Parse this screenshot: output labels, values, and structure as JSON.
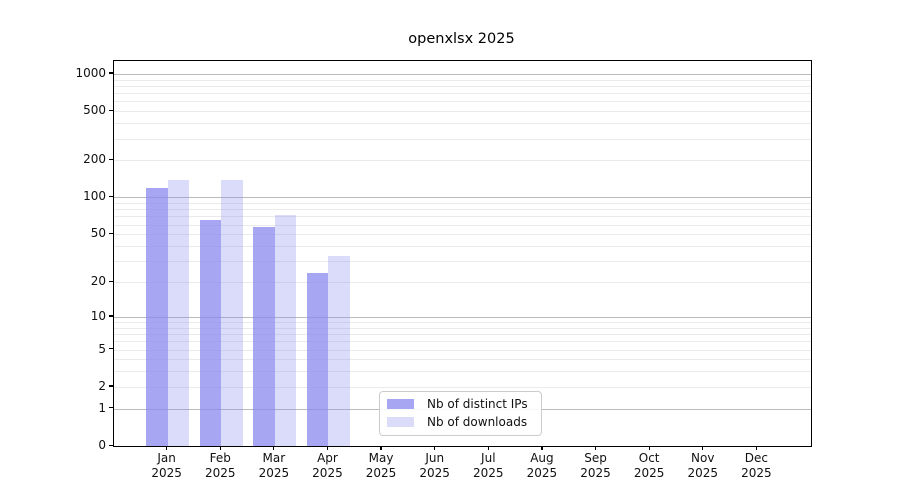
{
  "title": "openxlsx 2025",
  "chart_data": {
    "type": "bar",
    "title": "openxlsx 2025",
    "categories": [
      "Jan 2025",
      "Feb 2025",
      "Mar 2025",
      "Apr 2025",
      "May 2025",
      "Jun 2025",
      "Jul 2025",
      "Aug 2025",
      "Sep 2025",
      "Oct 2025",
      "Nov 2025",
      "Dec 2025"
    ],
    "series": [
      {
        "name": "Nb of distinct IPs",
        "color": "rgba(136,136,238,0.75)",
        "values": [
          120,
          65,
          57,
          24,
          0,
          0,
          0,
          0,
          0,
          0,
          0,
          0
        ]
      },
      {
        "name": "Nb of downloads",
        "color": "rgba(136,136,238,0.30)",
        "values": [
          140,
          138,
          72,
          33,
          0,
          0,
          0,
          0,
          0,
          0,
          0,
          0
        ]
      }
    ],
    "yscale": "log10(1+y)",
    "ylim": [
      0,
      1272
    ],
    "yticks": [
      0,
      1,
      2,
      5,
      10,
      20,
      50,
      100,
      200,
      500,
      1000
    ],
    "ytick_labels": [
      "0",
      "1",
      "2",
      "5",
      "10",
      "20",
      "50",
      "100",
      "200",
      "500",
      "1000"
    ],
    "major_gridlines": [
      1,
      10,
      100,
      1000
    ],
    "minor_gridlines": [
      2,
      3,
      4,
      5,
      6,
      7,
      8,
      9,
      20,
      30,
      40,
      50,
      60,
      70,
      80,
      90,
      200,
      300,
      400,
      500,
      600,
      700,
      800,
      900
    ],
    "grid": true,
    "xlabel": "",
    "ylabel": "",
    "legend_position": "lower-center-inside"
  },
  "legend": {
    "items": [
      {
        "label": "Nb of distinct IPs",
        "swatch_color": "rgba(136,136,238,0.75)"
      },
      {
        "label": "Nb of downloads",
        "swatch_color": "rgba(136,136,238,0.30)"
      }
    ]
  },
  "colors": {
    "background": "#ffffff",
    "axis_frame": "#000000",
    "major_grid": "#bbbbbb",
    "minor_grid": "#eaeaea",
    "text": "#111111",
    "bar_base": "#8888ee"
  }
}
